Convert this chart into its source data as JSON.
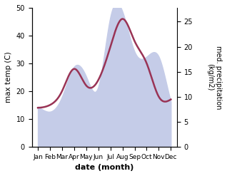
{
  "months": [
    "Jan",
    "Feb",
    "Mar",
    "Apr",
    "May",
    "Jun",
    "Jul",
    "Aug",
    "Sep",
    "Oct",
    "Nov",
    "Dec"
  ],
  "month_positions": [
    0,
    1,
    2,
    3,
    4,
    5,
    6,
    7,
    8,
    9,
    10,
    11
  ],
  "temperature": [
    14,
    15,
    20,
    28,
    22,
    24,
    36,
    46,
    38,
    30,
    18,
    17
  ],
  "precipitation": [
    8,
    7,
    10,
    16,
    14,
    12,
    26,
    27,
    19,
    18,
    18,
    9
  ],
  "temp_color": "#993355",
  "precip_fill_color": "#c5cce8",
  "bg_color": "#ffffff",
  "line_width": 1.8,
  "temp_ylim": [
    0,
    50
  ],
  "precip_ylim": [
    0,
    27.78
  ],
  "ylabel_left": "max temp (C)",
  "ylabel_right": "med. precipitation\n(kg/m2)",
  "xlabel": "date (month)",
  "yticks_left": [
    0,
    10,
    20,
    30,
    40,
    50
  ],
  "yticks_right": [
    0,
    5,
    10,
    15,
    20,
    25
  ]
}
